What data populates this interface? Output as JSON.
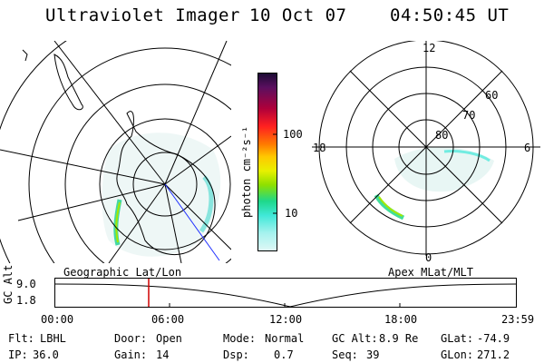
{
  "header": {
    "instrument": "Ultraviolet Imager",
    "date": "10 Oct 07",
    "time": "04:50:45 UT"
  },
  "colorbar": {
    "units_label": "photon cm⁻²s⁻¹",
    "tick_100": "100",
    "tick_10": "10",
    "colors": [
      "#1a0b33",
      "#5a0f5f",
      "#b0003a",
      "#ff2020",
      "#ff7a00",
      "#ffc800",
      "#e8f000",
      "#8de000",
      "#1ed88a",
      "#40e8d8",
      "#a6f2ee",
      "#e0f8f6"
    ]
  },
  "geo_map": {
    "label": "Geographic Lat/Lon"
  },
  "apex_map": {
    "label": "Apex MLat/MLT",
    "mlt_12": "12",
    "mlt_18": "18",
    "mlt_6": "6",
    "mlt_0": "0",
    "lat_60": "60",
    "lat_70": "70",
    "lat_80": "80"
  },
  "altitude_plot": {
    "ylabel": "GC Alt",
    "ytick_top": "9.0",
    "ytick_bottom": "1.8",
    "xticks": [
      "00:00",
      "06:00",
      "12:00",
      "18:00",
      "23:59"
    ]
  },
  "info": {
    "filter_label": "Flt:",
    "filter_value": "LBHL",
    "door_label": "Door:",
    "door_value": "Open",
    "mode_label": "Mode:",
    "mode_value": "Normal",
    "gcalt_label": "GC Alt:",
    "gcalt_value": "8.9 Re",
    "glat_label": "GLat:",
    "glat_value": "-74.9",
    "ip_label": "IP:",
    "ip_value": "36.0",
    "gain_label": "Gain:",
    "gain_value": "14",
    "dsp_label": "Dsp:",
    "dsp_value": "0.7",
    "seq_label": "Seq:",
    "seq_value": "39",
    "glon_label": "GLon:",
    "glon_value": "271.2"
  }
}
